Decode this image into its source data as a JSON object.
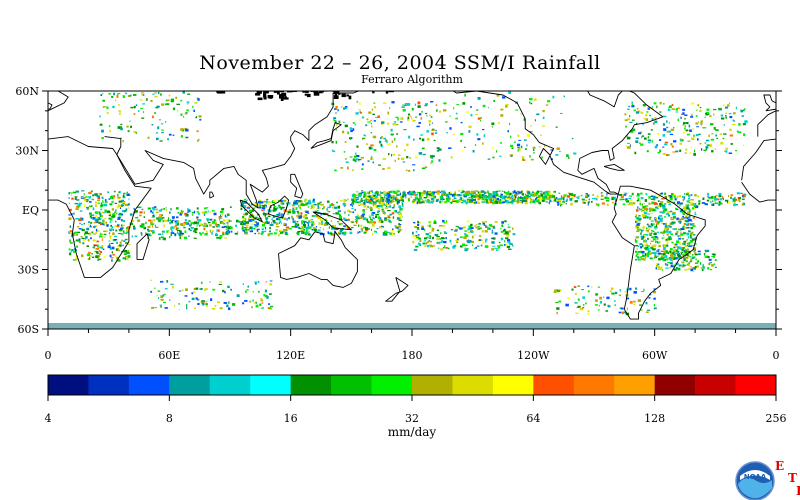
{
  "title": "November 22 – 26, 2004 SSM/I Rainfall",
  "subtitle": "Ferraro Algorithm",
  "map": {
    "lat_labels": [
      "60N",
      "30N",
      "EQ",
      "30S",
      "60S"
    ],
    "lat_values": [
      60,
      30,
      0,
      -30,
      -60
    ],
    "lon_labels": [
      "0",
      "60E",
      "120E",
      "180",
      "120W",
      "60W",
      "0"
    ],
    "lon_values": [
      0,
      60,
      120,
      180,
      240,
      300,
      360
    ],
    "lat_range": [
      -60,
      60
    ],
    "lon_range": [
      0,
      360
    ]
  },
  "colorbar": {
    "unit_label": "mm/day",
    "tick_labels": [
      "4",
      "8",
      "16",
      "32",
      "64",
      "128",
      "256"
    ],
    "colors": [
      "#000f80",
      "#0030c0",
      "#0050ff",
      "#009f9f",
      "#00cfcf",
      "#00ffff",
      "#009000",
      "#00c000",
      "#00f000",
      "#b0b000",
      "#dcdc00",
      "#ffff00",
      "#ff5000",
      "#ff7800",
      "#ffa000",
      "#900000",
      "#c80000",
      "#ff0000"
    ]
  },
  "logo": {
    "text": "NOAA",
    "letters": [
      "E",
      "T",
      "L"
    ]
  }
}
